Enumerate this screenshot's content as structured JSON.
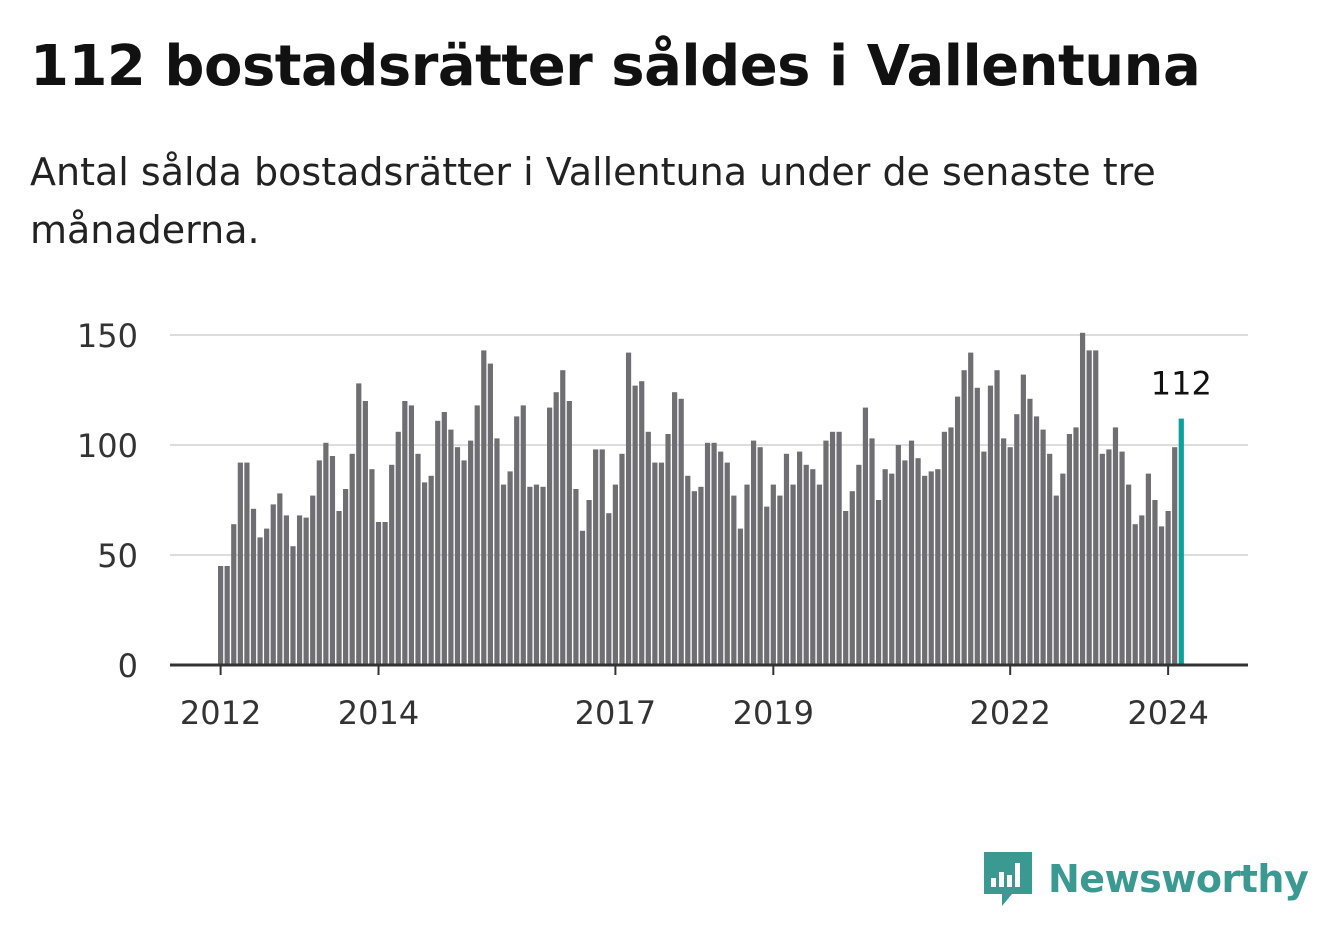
{
  "title": "112 bostadsrätter såldes i Vallentuna",
  "subtitle": "Antal sålda bostadsrätter i Vallentuna under de senaste tre månaderna.",
  "brand": {
    "name": "Newsworthy",
    "color": "#3a9a91"
  },
  "chart_data": {
    "type": "bar",
    "x_unit": "month",
    "start_month": "2012-01",
    "values": [
      45,
      45,
      64,
      92,
      92,
      71,
      58,
      62,
      73,
      78,
      68,
      54,
      68,
      67,
      77,
      93,
      101,
      95,
      70,
      80,
      96,
      128,
      120,
      89,
      65,
      65,
      91,
      106,
      120,
      118,
      96,
      83,
      86,
      111,
      115,
      107,
      99,
      93,
      102,
      118,
      143,
      137,
      103,
      82,
      88,
      113,
      118,
      81,
      82,
      81,
      117,
      124,
      134,
      120,
      80,
      61,
      75,
      98,
      98,
      69,
      82,
      96,
      142,
      127,
      129,
      106,
      92,
      92,
      105,
      124,
      121,
      86,
      79,
      81,
      101,
      101,
      97,
      92,
      77,
      62,
      82,
      102,
      99,
      72,
      82,
      77,
      96,
      82,
      97,
      91,
      89,
      82,
      102,
      106,
      106,
      70,
      79,
      91,
      117,
      103,
      75,
      89,
      87,
      100,
      93,
      102,
      94,
      86,
      88,
      89,
      106,
      108,
      122,
      134,
      142,
      126,
      97,
      127,
      134,
      103,
      99,
      114,
      132,
      121,
      113,
      107,
      96,
      77,
      87,
      105,
      108,
      151,
      143,
      143,
      96,
      98,
      108,
      97,
      82,
      64,
      68,
      87,
      75,
      63,
      70,
      99,
      112
    ],
    "ylim": [
      0,
      150
    ],
    "yticks": [
      0,
      50,
      100,
      150
    ],
    "xticks": [
      "2012",
      "2014",
      "2017",
      "2019",
      "2022",
      "2024"
    ],
    "annotation": {
      "label": "112"
    },
    "colors": {
      "bar": "#6f6e73",
      "highlight": "#0aa29a",
      "grid": "#dddddd",
      "axis": "#333333"
    },
    "grid": true
  }
}
